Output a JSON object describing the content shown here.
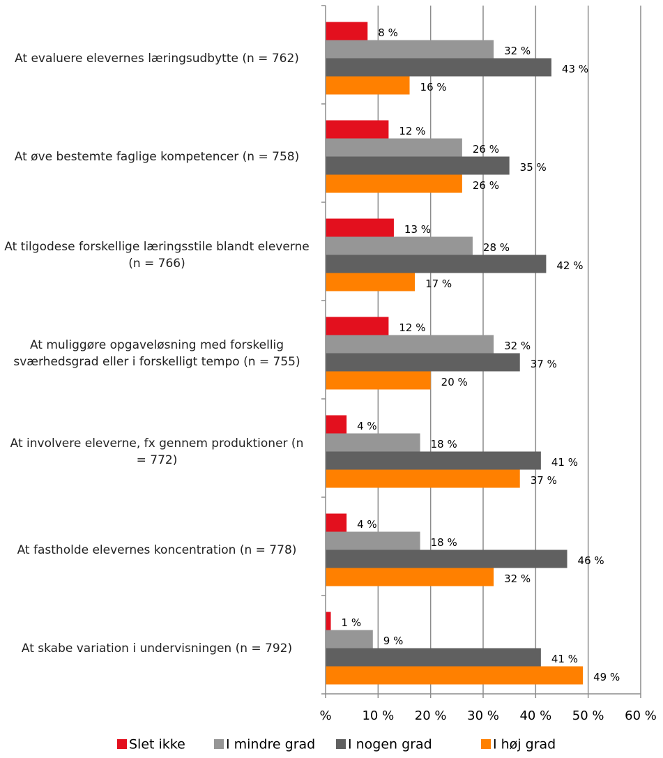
{
  "chart_data": {
    "type": "bar",
    "orientation": "horizontal",
    "categories": [
      "At evaluere elevernes læringsudbytte  (n = 762)",
      "At øve bestemte faglige kompetencer (n = 758)",
      "At tilgodese forskellige læringsstile blandt eleverne (n = 766)",
      "At muliggøre opgaveløsning med forskellig sværhedsgrad eller i forskelligt tempo (n = 755)",
      "At involvere eleverne, fx gennem produktioner (n = 772)",
      "At fastholde elevernes koncentration (n = 778)",
      "At skabe variation i undervisningen (n = 792)"
    ],
    "series": [
      {
        "name": "Slet ikke",
        "color": "#e3101e",
        "values": [
          8,
          12,
          13,
          12,
          4,
          4,
          1
        ],
        "value_labels": [
          "8 %",
          "12 %",
          "13 %",
          "12 %",
          "4 %",
          "4 %",
          "1 %"
        ]
      },
      {
        "name": "I mindre grad",
        "color": "#969696",
        "values": [
          32,
          26,
          28,
          32,
          18,
          18,
          9
        ],
        "value_labels": [
          "32 %",
          "26 %",
          "28 %",
          "32 %",
          "18 %",
          "18 %",
          "9 %"
        ]
      },
      {
        "name": "I nogen grad",
        "color": "#606060",
        "values": [
          43,
          35,
          42,
          37,
          41,
          46,
          41
        ],
        "value_labels": [
          "43 %",
          "35 %",
          "42 %",
          "37 %",
          "41 %",
          "46 %",
          "41 %"
        ]
      },
      {
        "name": "I høj grad",
        "color": "#ff8000",
        "values": [
          16,
          26,
          17,
          20,
          37,
          32,
          49
        ],
        "value_labels": [
          "16 %",
          "26 %",
          "17 %",
          "20 %",
          "37 %",
          "32 %",
          "49 %"
        ]
      }
    ],
    "xlim": [
      0,
      60
    ],
    "xticks": [
      {
        "value": 0,
        "label": "%"
      },
      {
        "value": 10,
        "label": "10 %"
      },
      {
        "value": 20,
        "label": "20 %"
      },
      {
        "value": 30,
        "label": "30 %"
      },
      {
        "value": 40,
        "label": "40 %"
      },
      {
        "value": 50,
        "label": "50 %"
      },
      {
        "value": 60,
        "label": "60 %"
      }
    ],
    "grid": true,
    "legend": "bottom"
  }
}
